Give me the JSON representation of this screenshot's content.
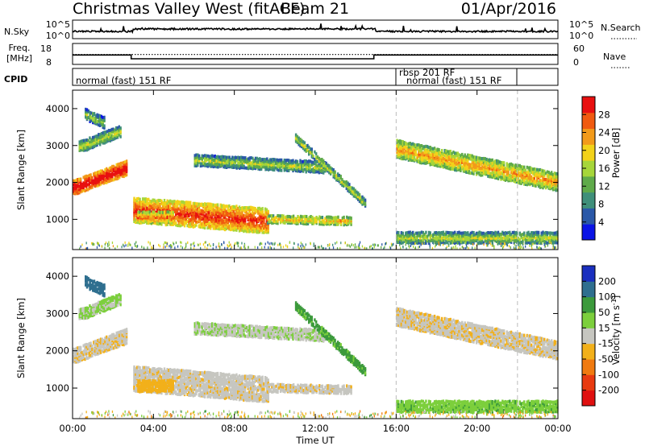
{
  "header": {
    "title": "Christmas Valley West (fitACF)",
    "beam": "Beam 21",
    "date": "01/Apr/2016"
  },
  "status_panels": {
    "nsky_label": "N.Sky",
    "nsky_ticks": [
      "10^5",
      "10^0"
    ],
    "nsearch_label": "N.Search",
    "freq_label_line1": "Freq.",
    "freq_label_line2": "[MHz]",
    "freq_ticks": [
      "18",
      "8"
    ],
    "nave_label": "Nave",
    "nave_ticks": [
      "60",
      "0"
    ],
    "cpid_label": "CPID",
    "cpid_segments": [
      {
        "text": "normal (fast) 151 RF",
        "start_hour": 0,
        "end_hour": 16
      },
      {
        "text": "rbsp 201 RF",
        "start_hour": 16,
        "end_hour": 22
      },
      {
        "text": "normal (fast) 151 RF",
        "start_hour": 16.5,
        "end_hour": 24
      }
    ],
    "freq_trace": [
      {
        "hour": 0,
        "mhz": 12.5
      },
      {
        "hour": 2.9,
        "mhz": 12.5
      },
      {
        "hour": 2.9,
        "mhz": 10.7
      },
      {
        "hour": 14.9,
        "mhz": 10.7
      },
      {
        "hour": 14.9,
        "mhz": 12.5
      },
      {
        "hour": 24,
        "mhz": 12.5
      }
    ],
    "nave_trace": [
      {
        "hour": 0,
        "nave": 56
      },
      {
        "hour": 24,
        "nave": 56
      }
    ]
  },
  "power_panel": {
    "ylabel": "Slant Range [km]",
    "yticks": [
      "1000",
      "2000",
      "3000",
      "4000"
    ],
    "colorbar_label": "Power [dB]",
    "colorbar_ticks": [
      "4",
      "8",
      "12",
      "16",
      "20",
      "24",
      "28"
    ],
    "colors": [
      "#0a14e6",
      "#2a58a8",
      "#3f8f7a",
      "#5faa4a",
      "#a6d63a",
      "#f2d21a",
      "#f29a1a",
      "#f05a10",
      "#e81010"
    ]
  },
  "velocity_panel": {
    "ylabel": "Slant Range [km]",
    "yticks": [
      "1000",
      "2000",
      "3000",
      "4000"
    ],
    "colorbar_label": "Velocity [m s",
    "colorbar_sup": "-1",
    "colorbar_label_end": "]",
    "colorbar_ticks": [
      "200",
      "100",
      "50",
      "15",
      "-15",
      "-50",
      "-100",
      "-200"
    ],
    "colors": [
      "#1a2fbf",
      "#2f6f8f",
      "#3c9a3c",
      "#7ccf3c",
      "#c6c6c0",
      "#f2b01a",
      "#f07a10",
      "#e83a10",
      "#e01010"
    ]
  },
  "xaxis": {
    "label": "Time UT",
    "ticks": [
      "00:00",
      "04:00",
      "08:00",
      "12:00",
      "16:00",
      "20:00",
      "00:00"
    ]
  },
  "chart_data": {
    "type": "heatmap",
    "title": "Christmas Valley West (fitACF)",
    "subtitle": "Beam 21",
    "date": "01/Apr/2016",
    "xlabel": "Time UT",
    "ylabel": "Slant Range [km]",
    "xlim_hours": [
      0,
      24
    ],
    "ylim_km": [
      180,
      4500
    ],
    "colorbar_power_range_db": [
      0,
      32
    ],
    "colorbar_velocity_range": [
      -240,
      240
    ],
    "echo_regions": [
      {
        "name": "A",
        "t0": 0.0,
        "t1": 2.7,
        "r_center_start": 1850,
        "r_center_end": 2400,
        "halfwidth": 200,
        "power_db": 26,
        "velocity": -10
      },
      {
        "name": "B",
        "t0": 0.3,
        "t1": 2.4,
        "r_center_start": 2950,
        "r_center_end": 3400,
        "halfwidth": 130,
        "power_db": 10,
        "velocity": 20
      },
      {
        "name": "C",
        "t0": 0.6,
        "t1": 1.6,
        "r_center_start": 3850,
        "r_center_end": 3600,
        "halfwidth": 120,
        "power_db": 8,
        "velocity": 180
      },
      {
        "name": "D",
        "t0": 3.0,
        "t1": 9.7,
        "r_center_start": 1250,
        "r_center_end": 950,
        "halfwidth": 300,
        "power_db": 22,
        "velocity": -5
      },
      {
        "name": "E",
        "t0": 3.2,
        "t1": 5.0,
        "r_center_start": 1050,
        "r_center_end": 1050,
        "halfwidth": 120,
        "power_db": 18,
        "velocity": -30
      },
      {
        "name": "F",
        "t0": 9.6,
        "t1": 13.8,
        "r_center_start": 1000,
        "r_center_end": 950,
        "halfwidth": 80,
        "power_db": 14,
        "velocity": -5
      },
      {
        "name": "G",
        "t0": 6.0,
        "t1": 12.5,
        "r_center_start": 2600,
        "r_center_end": 2400,
        "halfwidth": 120,
        "power_db": 9,
        "velocity": 10
      },
      {
        "name": "H",
        "t0": 11.0,
        "t1": 14.5,
        "r_center_start": 3200,
        "r_center_end": 1400,
        "halfwidth": 90,
        "power_db": 10,
        "velocity": 60
      },
      {
        "name": "I",
        "t0": 16.0,
        "t1": 24.0,
        "r_center_start": 2900,
        "r_center_end": 2000,
        "halfwidth": 230,
        "power_db": 16,
        "velocity": -8
      },
      {
        "name": "J",
        "t0": 16.0,
        "t1": 24.0,
        "r_center_start": 500,
        "r_center_end": 500,
        "halfwidth": 150,
        "power_db": 10,
        "velocity": 40
      }
    ]
  }
}
